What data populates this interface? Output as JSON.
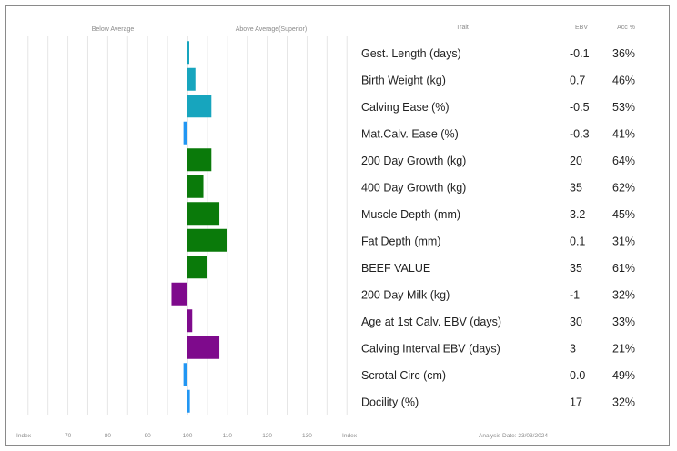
{
  "chart_data": {
    "type": "bar",
    "orientation": "horizontal",
    "header": {
      "below_label": "Below Average",
      "above_label": "Above Average(Superior)",
      "trait_col": "Trait",
      "ebv_col": "EBV",
      "acc_col": "Acc %"
    },
    "index_center": 100,
    "index_range": [
      58,
      142
    ],
    "index_ticks": [
      {
        "value": 58,
        "label": "Index"
      },
      {
        "value": 70,
        "label": "70"
      },
      {
        "value": 80,
        "label": "80"
      },
      {
        "value": 90,
        "label": "90"
      },
      {
        "value": 100,
        "label": "100"
      },
      {
        "value": 110,
        "label": "110"
      },
      {
        "value": 120,
        "label": "120"
      },
      {
        "value": 130,
        "label": "130"
      },
      {
        "value": 142,
        "label": "Index"
      }
    ],
    "colors": {
      "birth": "#17a5be",
      "birth_neg": "#2196f3",
      "growth": "#0a7a0a",
      "maternal": "#7e0a8c",
      "other": "#2196f3"
    },
    "traits": [
      {
        "trait": "Gest. Length (days)",
        "ebv": "-0.1",
        "acc": "36%",
        "index": 100.4,
        "group": "birth"
      },
      {
        "trait": "Birth Weight (kg)",
        "ebv": "0.7",
        "acc": "46%",
        "index": 102,
        "group": "birth"
      },
      {
        "trait": "Calving Ease (%)",
        "ebv": "-0.5",
        "acc": "53%",
        "index": 106,
        "group": "birth"
      },
      {
        "trait": "Mat.Calv. Ease (%)",
        "ebv": "-0.3",
        "acc": "41%",
        "index": 99,
        "group": "birth_neg"
      },
      {
        "trait": "200 Day Growth (kg)",
        "ebv": "20",
        "acc": "64%",
        "index": 106,
        "group": "growth"
      },
      {
        "trait": "400 Day Growth (kg)",
        "ebv": "35",
        "acc": "62%",
        "index": 104,
        "group": "growth"
      },
      {
        "trait": "Muscle Depth (mm)",
        "ebv": "3.2",
        "acc": "45%",
        "index": 108,
        "group": "growth"
      },
      {
        "trait": "Fat Depth (mm)",
        "ebv": "0.1",
        "acc": "31%",
        "index": 110,
        "group": "growth"
      },
      {
        "trait": "BEEF VALUE",
        "ebv": "35",
        "acc": "61%",
        "index": 105,
        "group": "growth"
      },
      {
        "trait": "200 Day Milk (kg)",
        "ebv": "-1",
        "acc": "32%",
        "index": 96,
        "group": "maternal"
      },
      {
        "trait": "Age at 1st Calv. EBV (days)",
        "ebv": "30",
        "acc": "33%",
        "index": 101.2,
        "group": "maternal"
      },
      {
        "trait": "Calving Interval EBV (days)",
        "ebv": "3",
        "acc": "21%",
        "index": 108,
        "group": "maternal"
      },
      {
        "trait": "Scrotal Circ (cm)",
        "ebv": "0.0",
        "acc": "49%",
        "index": 99,
        "group": "other"
      },
      {
        "trait": "Docility (%)",
        "ebv": "17",
        "acc": "32%",
        "index": 100.6,
        "group": "other"
      }
    ],
    "footer": {
      "analysis": "Analysis Date: 23/03/2024"
    }
  }
}
